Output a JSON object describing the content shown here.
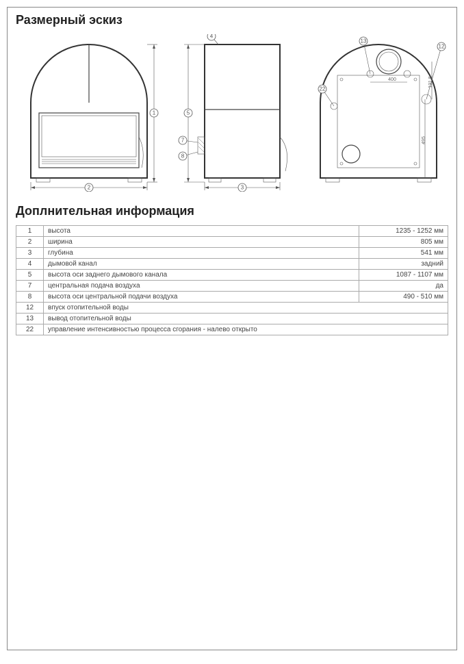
{
  "title_sketch": "Размерный эскиз",
  "title_info": "Доплнительная информация",
  "callouts": {
    "c1": "1",
    "c2": "2",
    "c3": "3",
    "c4": "4",
    "c5": "5",
    "c7": "7",
    "c8": "8",
    "c12": "12",
    "c13": "13",
    "c22": "22"
  },
  "dims": {
    "d400": "400",
    "d131": "131.5",
    "d495": "495"
  },
  "rows": [
    {
      "idx": "1",
      "label": "высота",
      "val": "1235 - 1252 мм"
    },
    {
      "idx": "2",
      "label": "ширина",
      "val": "805 мм"
    },
    {
      "idx": "3",
      "label": "глубина",
      "val": "541 мм"
    },
    {
      "idx": "4",
      "label": "дымовой канал",
      "val": "задний"
    },
    {
      "idx": "5",
      "label": "высота оси заднего дымового канала",
      "val": "1087 - 1107 мм"
    },
    {
      "idx": "7",
      "label": "центральная подача воздуха",
      "val": "да"
    },
    {
      "idx": "8",
      "label": "высота оси центральной подачи воздуха",
      "val": "490 - 510 мм"
    },
    {
      "idx": "12",
      "label": "впуск отопительной воды",
      "val": ""
    },
    {
      "idx": "13",
      "label": "вывод отопительной воды",
      "val": ""
    },
    {
      "idx": "22",
      "label": "управление интенсивностью процесса сгорания - налево открыто",
      "val": ""
    }
  ]
}
